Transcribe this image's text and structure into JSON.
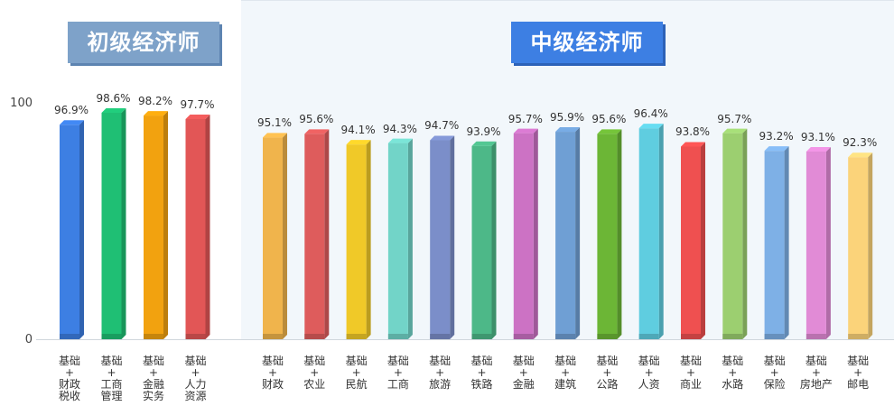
{
  "titles": {
    "basic": "初级经济师",
    "intermediate": "中级经济师"
  },
  "chart_data": {
    "type": "bar",
    "ylim": [
      0,
      100
    ],
    "yticks": [
      "100",
      "0"
    ],
    "groups": [
      {
        "name": "初级经济师",
        "bars": [
          {
            "lines": [
              "基础",
              "+",
              "财政",
              "税收"
            ],
            "value": 96.9,
            "label": "96.9%",
            "color": "#3d7fe3"
          },
          {
            "lines": [
              "基础",
              "+",
              "工商",
              "管理"
            ],
            "value": 98.6,
            "label": "98.6%",
            "color": "#1fbf74"
          },
          {
            "lines": [
              "基础",
              "+",
              "金融",
              "实务"
            ],
            "value": 98.2,
            "label": "98.2%",
            "color": "#f2a20f"
          },
          {
            "lines": [
              "基础",
              "+",
              "人力",
              "资源"
            ],
            "value": 97.7,
            "label": "97.7%",
            "color": "#e25656"
          }
        ]
      },
      {
        "name": "中级经济师",
        "bars": [
          {
            "lines": [
              "基础",
              "+",
              "财政"
            ],
            "value": 95.1,
            "label": "95.1%",
            "color": "#f0b44c"
          },
          {
            "lines": [
              "基础",
              "+",
              "农业"
            ],
            "value": 95.6,
            "label": "95.6%",
            "color": "#de5c5c"
          },
          {
            "lines": [
              "基础",
              "+",
              "民航"
            ],
            "value": 94.1,
            "label": "94.1%",
            "color": "#f0c928"
          },
          {
            "lines": [
              "基础",
              "+",
              "工商"
            ],
            "value": 94.3,
            "label": "94.3%",
            "color": "#72d4c8"
          },
          {
            "lines": [
              "基础",
              "+",
              "旅游"
            ],
            "value": 94.7,
            "label": "94.7%",
            "color": "#7b8ec9"
          },
          {
            "lines": [
              "基础",
              "+",
              "铁路"
            ],
            "value": 93.9,
            "label": "93.9%",
            "color": "#4db888"
          },
          {
            "lines": [
              "基础",
              "+",
              "金融"
            ],
            "value": 95.7,
            "label": "95.7%",
            "color": "#cc72c4"
          },
          {
            "lines": [
              "基础",
              "+",
              "建筑"
            ],
            "value": 95.9,
            "label": "95.9%",
            "color": "#6f9fd4"
          },
          {
            "lines": [
              "基础",
              "+",
              "公路"
            ],
            "value": 95.6,
            "label": "95.6%",
            "color": "#6cb636"
          },
          {
            "lines": [
              "基础",
              "+",
              "人资"
            ],
            "value": 96.4,
            "label": "96.4%",
            "color": "#5fcde0"
          },
          {
            "lines": [
              "基础",
              "+",
              "商业"
            ],
            "value": 93.8,
            "label": "93.8%",
            "color": "#ef5050"
          },
          {
            "lines": [
              "基础",
              "+",
              "水路"
            ],
            "value": 95.7,
            "label": "95.7%",
            "color": "#9ccf70"
          },
          {
            "lines": [
              "基础",
              "+",
              "保险"
            ],
            "value": 93.2,
            "label": "93.2%",
            "color": "#7eb0e6"
          },
          {
            "lines": [
              "基础",
              "+",
              "房地产"
            ],
            "value": 93.1,
            "label": "93.1%",
            "color": "#e18bd6"
          },
          {
            "lines": [
              "基础",
              "+",
              "邮电"
            ],
            "value": 92.3,
            "label": "92.3%",
            "color": "#fbd37a"
          }
        ]
      }
    ]
  }
}
